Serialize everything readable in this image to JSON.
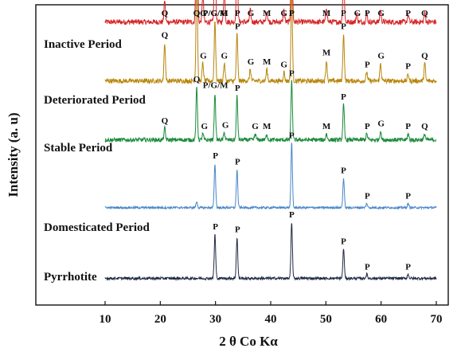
{
  "chart_data": {
    "type": "line",
    "xlabel": "2 θ Co Kα",
    "ylabel": "Intensity (a. u)",
    "xlim": [
      10,
      70
    ],
    "xticks": [
      10,
      20,
      30,
      40,
      50,
      60,
      70
    ],
    "y_ticks_shown": false,
    "grid": false,
    "legend": "none (series labelled directly above each trace)",
    "series": [
      {
        "name": "Inactive Period",
        "color": "#d62728",
        "baseline": 4.6,
        "noise": 0.045,
        "peaks": [
          [
            20.8,
            0.35
          ],
          [
            26.6,
            3.6
          ],
          [
            27.7,
            0.45
          ],
          [
            29.9,
            1.45
          ],
          [
            31.6,
            0.55
          ],
          [
            33.9,
            1.2
          ],
          [
            36.3,
            0.2
          ],
          [
            39.3,
            0.2
          ],
          [
            42.4,
            0.2
          ],
          [
            43.8,
            1.65
          ],
          [
            50.1,
            0.25
          ],
          [
            53.2,
            0.95
          ],
          [
            55.6,
            0.15
          ],
          [
            57.4,
            0.15
          ],
          [
            59.9,
            0.2
          ],
          [
            64.9,
            0.12
          ],
          [
            67.9,
            0.15
          ]
        ],
        "peak_labels": [
          [
            20.8,
            "Q"
          ],
          [
            26.6,
            "Q"
          ],
          [
            27.8,
            "G"
          ],
          [
            30.0,
            "P/G/M"
          ],
          [
            31.6,
            "G"
          ],
          [
            34.0,
            "P"
          ],
          [
            36.4,
            "G"
          ],
          [
            39.3,
            "M"
          ],
          [
            42.4,
            "G"
          ],
          [
            43.8,
            "P"
          ],
          [
            50.1,
            "M"
          ],
          [
            53.2,
            "P"
          ],
          [
            55.7,
            "G"
          ],
          [
            57.5,
            "P"
          ],
          [
            60.0,
            "G"
          ],
          [
            64.9,
            "P"
          ],
          [
            67.9,
            "Q"
          ]
        ]
      },
      {
        "name": "Deteriorated Period",
        "color": "#b8860b",
        "baseline": 3.6,
        "noise": 0.04,
        "peaks": [
          [
            20.8,
            0.65
          ],
          [
            26.6,
            1.9
          ],
          [
            27.7,
            0.3
          ],
          [
            29.9,
            1.05
          ],
          [
            31.6,
            0.3
          ],
          [
            33.9,
            0.8
          ],
          [
            36.3,
            0.2
          ],
          [
            39.3,
            0.2
          ],
          [
            42.4,
            0.15
          ],
          [
            43.8,
            1.6
          ],
          [
            50.1,
            0.35
          ],
          [
            53.2,
            0.8
          ],
          [
            57.4,
            0.15
          ],
          [
            59.9,
            0.3
          ],
          [
            64.9,
            0.12
          ],
          [
            67.9,
            0.3
          ]
        ],
        "peak_labels": [
          [
            20.8,
            "Q"
          ],
          [
            26.6,
            "Q"
          ],
          [
            27.8,
            "G"
          ],
          [
            30.0,
            "P/G/M"
          ],
          [
            31.6,
            "G"
          ],
          [
            34.0,
            "P"
          ],
          [
            36.4,
            "G"
          ],
          [
            39.3,
            "M"
          ],
          [
            42.4,
            "G"
          ],
          [
            43.8,
            "P"
          ],
          [
            50.1,
            "M"
          ],
          [
            53.2,
            "P"
          ],
          [
            57.5,
            "P"
          ],
          [
            60.0,
            "G"
          ],
          [
            64.9,
            "P"
          ],
          [
            67.9,
            "Q"
          ]
        ]
      },
      {
        "name": "Stable Period",
        "color": "#1a8a3a",
        "baseline": 2.6,
        "noise": 0.035,
        "peaks": [
          [
            20.8,
            0.2
          ],
          [
            26.6,
            0.9
          ],
          [
            27.7,
            0.1
          ],
          [
            29.9,
            0.8
          ],
          [
            31.6,
            0.12
          ],
          [
            33.9,
            0.75
          ],
          [
            37.2,
            0.1
          ],
          [
            39.3,
            0.1
          ],
          [
            43.8,
            1.0
          ],
          [
            50.1,
            0.1
          ],
          [
            53.2,
            0.6
          ],
          [
            57.4,
            0.1
          ],
          [
            59.9,
            0.15
          ],
          [
            64.9,
            0.1
          ],
          [
            67.9,
            0.1
          ]
        ],
        "peak_labels": [
          [
            20.8,
            "Q"
          ],
          [
            26.6,
            "Q"
          ],
          [
            28.0,
            "G"
          ],
          [
            30.0,
            "P/G/M"
          ],
          [
            31.8,
            "G"
          ],
          [
            34.0,
            "P"
          ],
          [
            37.2,
            "G"
          ],
          [
            39.3,
            "M"
          ],
          [
            43.8,
            "P"
          ],
          [
            50.1,
            "M"
          ],
          [
            53.2,
            "P"
          ],
          [
            57.5,
            "P"
          ],
          [
            60.0,
            "G"
          ],
          [
            64.9,
            "P"
          ],
          [
            67.9,
            "Q"
          ]
        ]
      },
      {
        "name": "Domesticated Period",
        "color": "#4a86c8",
        "baseline": 1.45,
        "noise": 0.018,
        "peaks": [
          [
            26.6,
            0.1
          ],
          [
            29.9,
            0.75
          ],
          [
            33.9,
            0.65
          ],
          [
            43.8,
            1.1
          ],
          [
            53.2,
            0.5
          ],
          [
            57.4,
            0.07
          ],
          [
            64.9,
            0.07
          ]
        ],
        "peak_labels": [
          [
            30.0,
            "P"
          ],
          [
            34.0,
            "P"
          ],
          [
            43.8,
            "P"
          ],
          [
            53.2,
            "P"
          ],
          [
            57.5,
            "P"
          ],
          [
            64.9,
            "P"
          ]
        ]
      },
      {
        "name": "Pyrrhotite",
        "color": "#1f2a44",
        "baseline": 0.25,
        "noise": 0.022,
        "peaks": [
          [
            29.9,
            0.75
          ],
          [
            33.9,
            0.7
          ],
          [
            43.8,
            0.95
          ],
          [
            53.2,
            0.5
          ],
          [
            57.4,
            0.07
          ],
          [
            64.9,
            0.07
          ]
        ],
        "peak_labels": [
          [
            30.0,
            "P"
          ],
          [
            34.0,
            "P"
          ],
          [
            43.8,
            "P"
          ],
          [
            53.2,
            "P"
          ],
          [
            57.5,
            "P"
          ],
          [
            64.9,
            "P"
          ]
        ]
      }
    ]
  }
}
